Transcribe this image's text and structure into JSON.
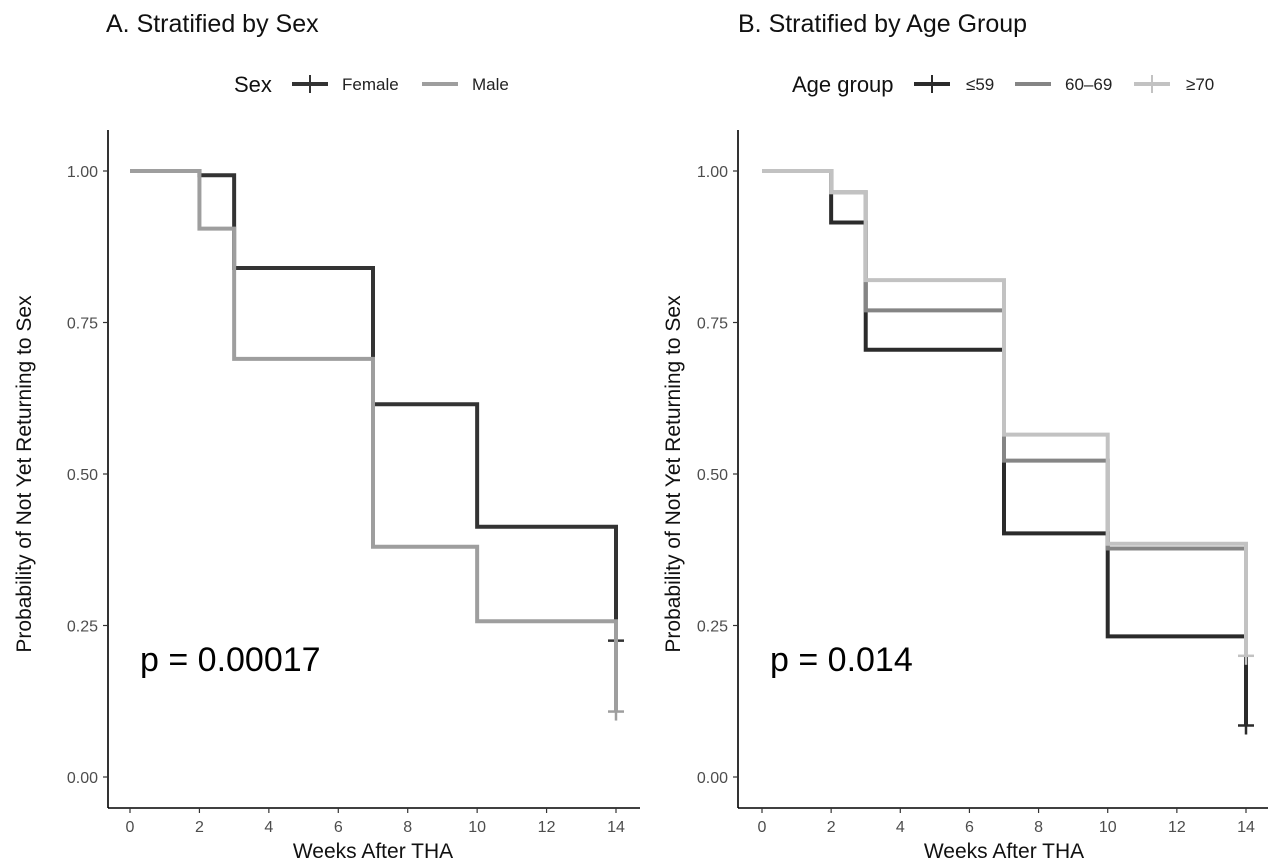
{
  "chart_data": [
    {
      "type": "line",
      "title": "A. Stratified by Sex",
      "xlabel": "Weeks After THA",
      "ylabel": "Probability of Not Yet Returning to Sex",
      "xlim": [
        0,
        14
      ],
      "ylim": [
        0,
        1
      ],
      "xticks": [
        "0",
        "2",
        "4",
        "6",
        "8",
        "10",
        "12",
        "14"
      ],
      "yticks": [
        "0.00",
        "0.25",
        "0.50",
        "0.75",
        "1.00"
      ],
      "legend_title": "Sex",
      "legend_position": "top",
      "grid": false,
      "annotation": "p = 0.00017",
      "series": [
        {
          "name": "Female",
          "color": "#333333",
          "steps": [
            [
              0,
              1.0
            ],
            [
              2,
              0.993
            ],
            [
              3,
              0.84
            ],
            [
              7,
              0.615
            ],
            [
              10,
              0.413
            ],
            [
              14,
              0.225
            ]
          ],
          "censor": [
            [
              14,
              0.225
            ]
          ]
        },
        {
          "name": "Male",
          "color": "#9e9e9e",
          "steps": [
            [
              0,
              1.0
            ],
            [
              2,
              0.905
            ],
            [
              3,
              0.69
            ],
            [
              7,
              0.38
            ],
            [
              10,
              0.257
            ],
            [
              14,
              0.108
            ]
          ],
          "censor": [
            [
              14,
              0.108
            ]
          ]
        }
      ]
    },
    {
      "type": "line",
      "title": "B. Stratified by Age Group",
      "xlabel": "Weeks After THA",
      "ylabel": "Probability of Not Yet Returning to Sex",
      "xlim": [
        0,
        14
      ],
      "ylim": [
        0,
        1
      ],
      "xticks": [
        "0",
        "2",
        "4",
        "6",
        "8",
        "10",
        "12",
        "14"
      ],
      "yticks": [
        "0.00",
        "0.25",
        "0.50",
        "0.75",
        "1.00"
      ],
      "legend_title": "Age group",
      "legend_position": "top",
      "grid": false,
      "annotation": "p = 0.014",
      "series": [
        {
          "name": "≤59",
          "color": "#2b2b2b",
          "steps": [
            [
              0,
              1.0
            ],
            [
              2,
              0.915
            ],
            [
              3,
              0.705
            ],
            [
              7,
              0.402
            ],
            [
              10,
              0.232
            ],
            [
              14,
              0.085
            ]
          ],
          "censor": [
            [
              14,
              0.085
            ]
          ]
        },
        {
          "name": "60–69",
          "color": "#858585",
          "steps": [
            [
              0,
              1.0
            ],
            [
              2,
              0.965
            ],
            [
              3,
              0.77
            ],
            [
              7,
              0.522
            ],
            [
              10,
              0.377
            ],
            [
              14,
              0.2
            ]
          ],
          "censor": []
        },
        {
          "name": "≥70",
          "color": "#c2c2c2",
          "steps": [
            [
              0,
              1.0
            ],
            [
              2,
              0.965
            ],
            [
              3,
              0.82
            ],
            [
              7,
              0.565
            ],
            [
              10,
              0.385
            ],
            [
              14,
              0.2
            ]
          ],
          "censor": [
            [
              14,
              0.2
            ]
          ]
        }
      ]
    }
  ]
}
